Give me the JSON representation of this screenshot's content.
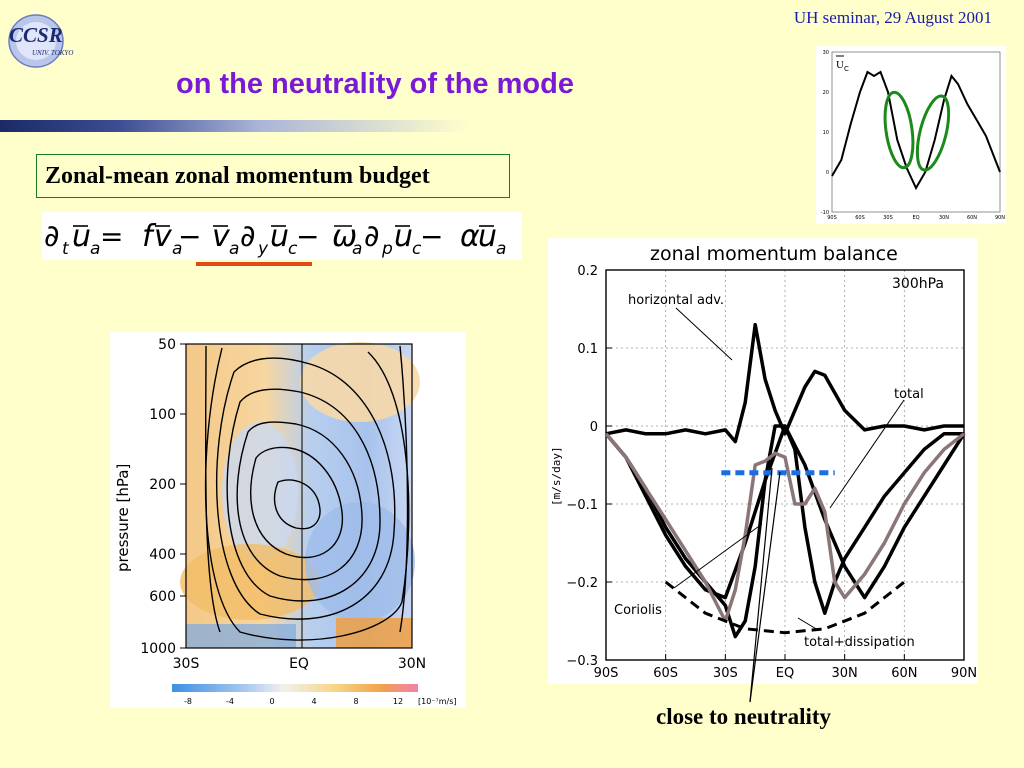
{
  "header": {
    "logo_text": "CCSR",
    "logo_subtext": "UNIV. TOKYO",
    "seminar": "UH seminar, 29 August 2001",
    "title": "on the neutrality of the mode"
  },
  "budget": {
    "label": "Zonal-mean zonal momentum budget"
  },
  "equation": {
    "terms": [
      "∂",
      "t",
      "u",
      "a",
      " = ",
      "f",
      "v",
      "a",
      " − ",
      "v",
      "a",
      "∂",
      "y",
      "u",
      "c",
      " − ",
      "ω",
      "a",
      "∂",
      "p",
      "u",
      "c",
      " − ",
      "α",
      "u",
      "a"
    ]
  },
  "annotation": "close to neutrality",
  "colors": {
    "title": "#7a1ad6",
    "seminar": "#1a1aa6",
    "highlight_underline": "#e04a18",
    "ellipse": "#1a8a1a",
    "neutral_line": "#1a6ee0",
    "box_border": "#1c7a1c"
  },
  "chart_data": [
    {
      "type": "line",
      "title": "U",
      "title_subscript": "C",
      "x_ticks": [
        "90S",
        "60S",
        "30S",
        "EQ",
        "30N",
        "60N",
        "90N"
      ],
      "y_ticks": [
        "-10",
        "0",
        "10",
        "20",
        "30"
      ],
      "ylim": [
        -10,
        30
      ],
      "series": [
        {
          "name": "",
          "x": [
            -90,
            -80,
            -70,
            -60,
            -52,
            -45,
            -38,
            -30,
            -20,
            -10,
            0,
            10,
            20,
            30,
            38,
            45,
            55,
            65,
            75,
            85,
            90
          ],
          "values": [
            -1,
            3,
            12,
            20,
            25,
            24,
            25,
            20,
            8,
            1,
            -4,
            0,
            8,
            18,
            24,
            22,
            17,
            13,
            9,
            3,
            0
          ]
        }
      ],
      "highlight": "two green ellipses on the slopes of the jets"
    },
    {
      "type": "line",
      "title": "zonal momentum balance",
      "subtitle": "300hPa",
      "ylabel": "[m/s/day]",
      "x_ticks": [
        "90S",
        "60S",
        "30S",
        "EQ",
        "30N",
        "60N",
        "90N"
      ],
      "y_ticks": [
        "0.2",
        "0.1",
        "0",
        "−0.1",
        "−0.2",
        "−0.3"
      ],
      "xlim": [
        -90,
        90
      ],
      "ylim": [
        -0.3,
        0.2
      ],
      "annotations": [
        "horizontal adv.",
        "total",
        "Coriolis",
        "total+dissipation"
      ],
      "neutral_line_y": -0.06,
      "series": [
        {
          "name": "horizontal adv.",
          "style": "black",
          "x": [
            -90,
            -80,
            -70,
            -60,
            -50,
            -40,
            -30,
            -25,
            -20,
            -15,
            -10,
            -5,
            0,
            5,
            10,
            15,
            20,
            30,
            40,
            50,
            60,
            70,
            80,
            90
          ],
          "values": [
            -0.01,
            -0.005,
            -0.01,
            -0.01,
            -0.005,
            -0.01,
            -0.005,
            -0.02,
            0.03,
            0.13,
            0.06,
            0.02,
            -0.01,
            0.02,
            0.05,
            0.07,
            0.065,
            0.02,
            -0.005,
            0.0,
            0.0,
            -0.005,
            0.0,
            0.0
          ]
        },
        {
          "name": "Coriolis",
          "style": "black",
          "x": [
            -90,
            -80,
            -70,
            -60,
            -50,
            -40,
            -30,
            -25,
            -20,
            -15,
            -10,
            -5,
            0,
            5,
            10,
            15,
            20,
            25,
            30,
            40,
            50,
            60,
            70,
            80,
            90
          ],
          "values": [
            -0.01,
            -0.04,
            -0.08,
            -0.13,
            -0.17,
            -0.2,
            -0.23,
            -0.27,
            -0.25,
            -0.18,
            -0.07,
            0.0,
            0.0,
            -0.03,
            -0.13,
            -0.2,
            -0.24,
            -0.2,
            -0.17,
            -0.13,
            -0.09,
            -0.06,
            -0.03,
            -0.01,
            -0.01
          ]
        },
        {
          "name": "total",
          "style": "black",
          "x": [
            -90,
            -80,
            -70,
            -60,
            -50,
            -40,
            -30,
            -20,
            -10,
            0,
            10,
            20,
            30,
            40,
            50,
            60,
            70,
            80,
            90
          ],
          "values": [
            -0.01,
            -0.04,
            -0.09,
            -0.14,
            -0.18,
            -0.21,
            -0.22,
            -0.15,
            -0.07,
            0.0,
            -0.05,
            -0.12,
            -0.18,
            -0.22,
            -0.18,
            -0.13,
            -0.09,
            -0.05,
            -0.01
          ]
        },
        {
          "name": "total+dissipation",
          "style": "gray",
          "x": [
            -90,
            -80,
            -70,
            -60,
            -50,
            -40,
            -30,
            -25,
            -20,
            -15,
            -10,
            -5,
            0,
            5,
            10,
            15,
            20,
            25,
            30,
            40,
            50,
            60,
            70,
            80,
            90
          ],
          "values": [
            -0.01,
            -0.04,
            -0.08,
            -0.12,
            -0.16,
            -0.2,
            -0.25,
            -0.21,
            -0.14,
            -0.05,
            -0.045,
            -0.035,
            -0.04,
            -0.1,
            -0.1,
            -0.08,
            -0.11,
            -0.2,
            -0.22,
            -0.19,
            -0.15,
            -0.1,
            -0.06,
            -0.03,
            -0.01
          ]
        },
        {
          "name": "dissipation",
          "style": "dashed",
          "x": [
            -60,
            -40,
            -20,
            0,
            20,
            40,
            60
          ],
          "values": [
            -0.2,
            -0.24,
            -0.26,
            -0.265,
            -0.26,
            -0.24,
            -0.2
          ]
        }
      ]
    },
    {
      "type": "heatmap",
      "ylabel": "pressure [hPa]",
      "x_ticks": [
        "30S",
        "EQ",
        "30N"
      ],
      "y_ticks": [
        "50",
        "100",
        "200",
        "400",
        "600",
        "1000"
      ],
      "colorbar_ticks": [
        "-8",
        "-4",
        "0",
        "4",
        "8",
        "12"
      ],
      "colorbar_unit": "[10⁻⁷m/s]"
    }
  ]
}
